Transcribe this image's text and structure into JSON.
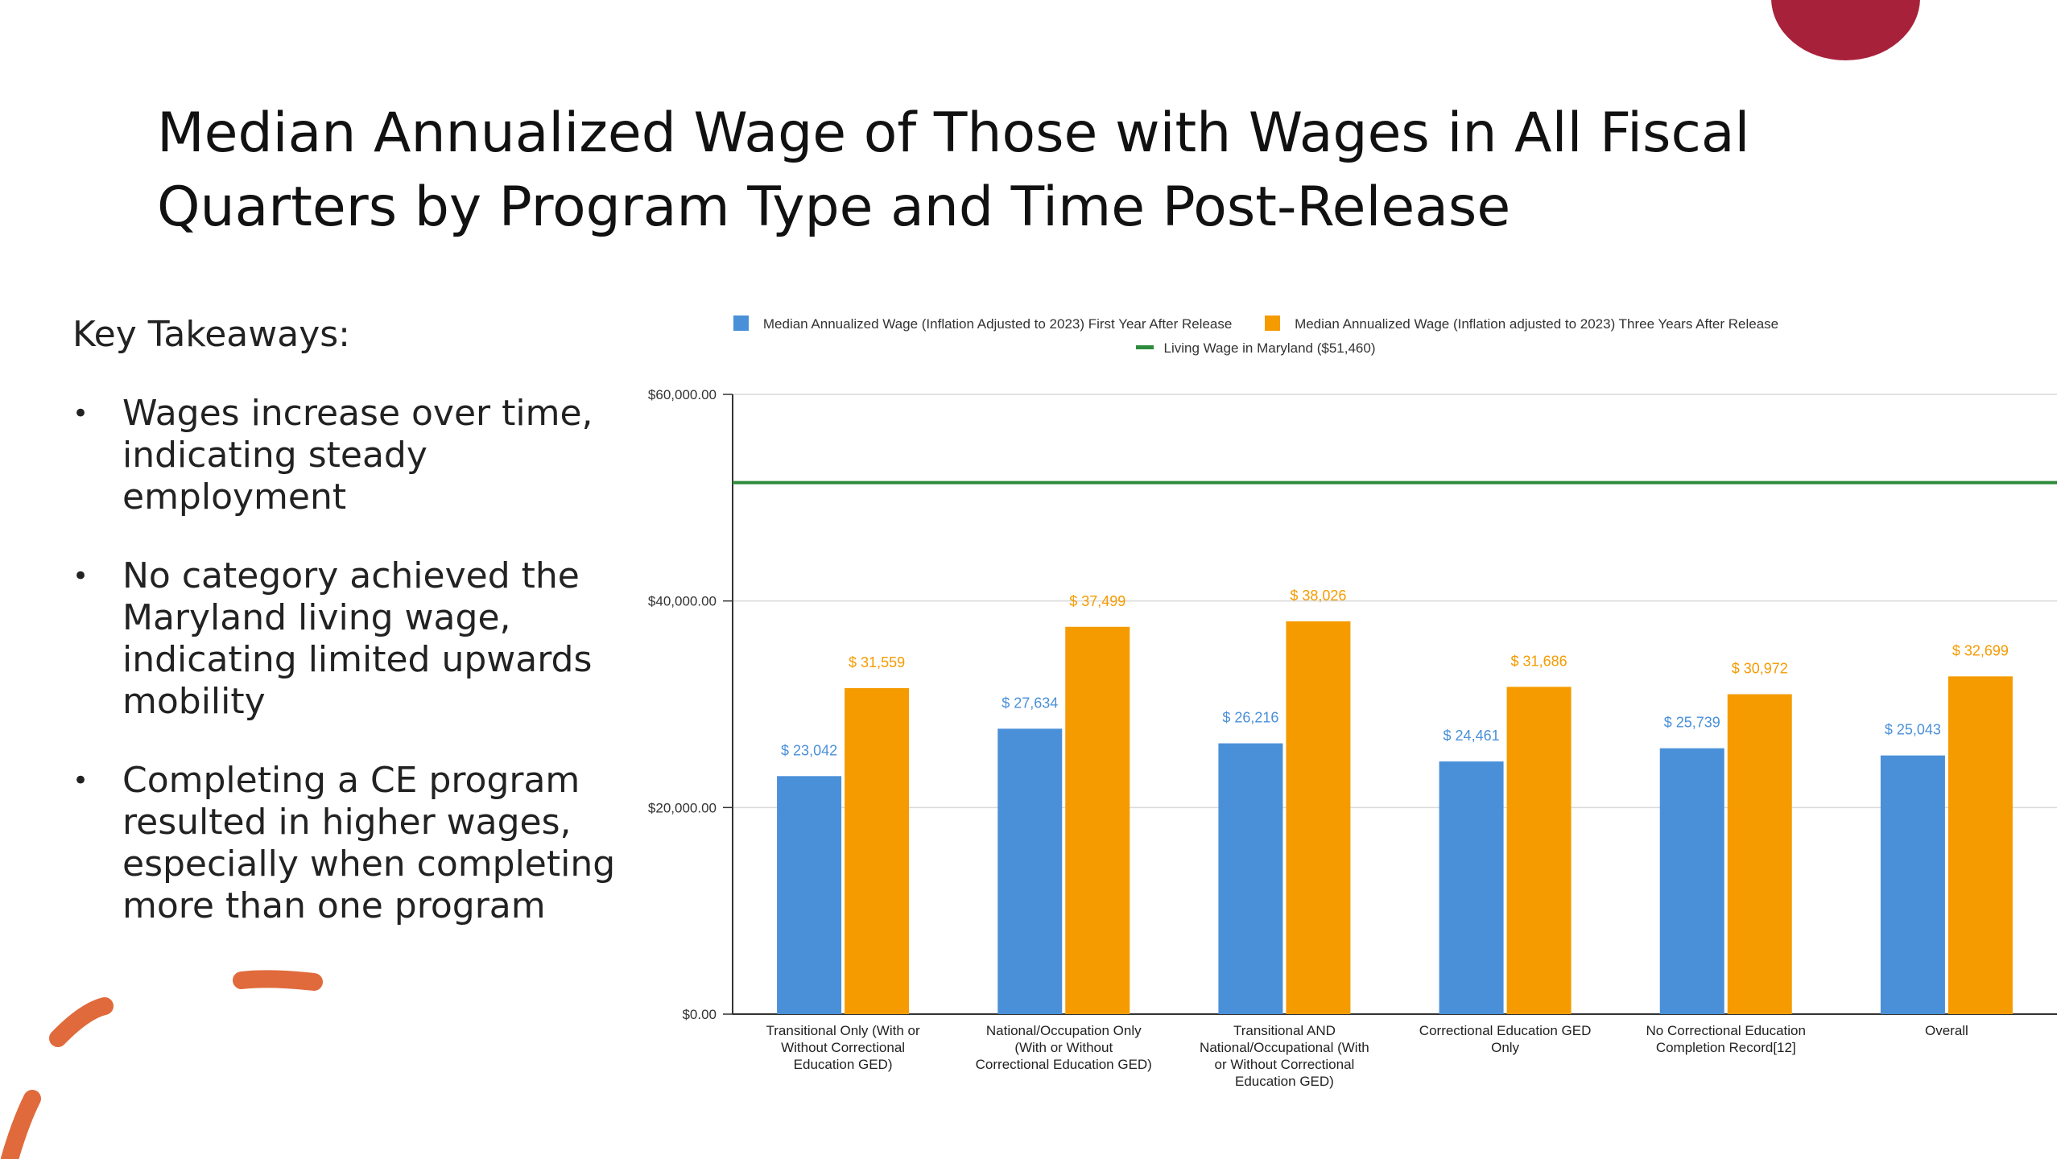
{
  "slide": {
    "title": "Median Annualized Wage of Those with Wages in All Fiscal Quarters by Program Type and Time Post-Release"
  },
  "takeaways": {
    "heading": "Key Takeaways:",
    "items": [
      "Wages increase over time, indicating steady employment",
      "No category achieved the Maryland living wage, indicating limited upwards mobility",
      "Completing a CE program resulted in higher wages, especially when completing more than one program"
    ]
  },
  "legend": {
    "first_year": "Median Annualized Wage (Inflation Adjusted to 2023) First Year After Release",
    "three_years": "Median Annualized Wage (Inflation adjusted to 2023) Three Years After Release",
    "living_wage": "Living Wage in Maryland ($51,460)"
  },
  "colors": {
    "first_year": "#4a90d9",
    "three_years": "#f59b00",
    "living_wage": "#2e8b3e",
    "accent_circle": "#a8213a",
    "accent_dash": "#e06a3b"
  },
  "chart_data": {
    "type": "bar",
    "categories": [
      [
        "Transitional Only (With or",
        "Without Correctional",
        "Education GED)"
      ],
      [
        "National/Occupation Only",
        "(With or Without",
        "Correctional Education GED)"
      ],
      [
        "Transitional AND",
        "National/Occupational (With",
        "or Without Correctional",
        "Education GED)"
      ],
      [
        "Correctional Education GED",
        "Only"
      ],
      [
        "No Correctional Education",
        "Completion Record[12]"
      ],
      [
        "Overall"
      ]
    ],
    "series": [
      {
        "name": "Median Annualized Wage (Inflation Adjusted to 2023) First Year After Release",
        "values": [
          23042,
          27634,
          26216,
          24461,
          25739,
          25043
        ],
        "labels": [
          "$ 23,042",
          "$ 27,634",
          "$ 26,216",
          "$ 24,461",
          "$ 25,739",
          "$ 25,043"
        ]
      },
      {
        "name": "Median Annualized Wage (Inflation adjusted to 2023) Three Years After Release",
        "values": [
          31559,
          37499,
          38026,
          31686,
          30972,
          32699
        ],
        "labels": [
          "$ 31,559",
          "$ 37,499",
          "$ 38,026",
          "$ 31,686",
          "$ 30,972",
          "$ 32,699"
        ]
      }
    ],
    "reference_line": {
      "name": "Living Wage in Maryland ($51,460)",
      "value": 51460
    },
    "y_ticks": [
      0,
      20000,
      40000,
      60000
    ],
    "y_tick_labels": [
      "$0.00",
      "$20,000.00",
      "$40,000.00",
      "$60,000.00"
    ],
    "ylim": [
      0,
      60000
    ],
    "grid": true,
    "legend_position": "top"
  }
}
